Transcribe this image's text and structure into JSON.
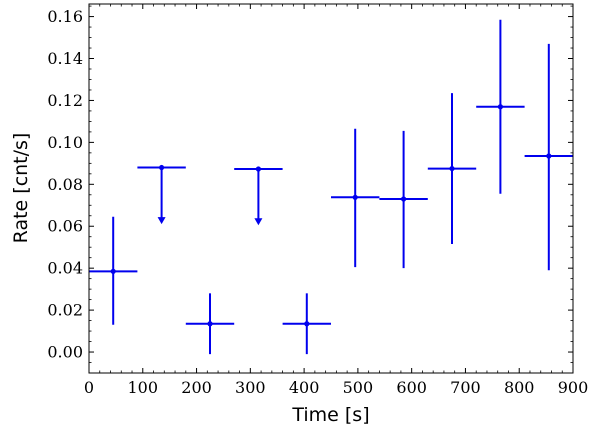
{
  "chart_data": {
    "type": "scatter",
    "title": "",
    "xlabel": "Time [s]",
    "ylabel": "Rate [cnt/s]",
    "xlim": [
      0,
      900
    ],
    "ylim": [
      -0.01,
      0.166
    ],
    "xticks": [
      0,
      100,
      200,
      300,
      400,
      500,
      600,
      700,
      800,
      900
    ],
    "xtick_labels": [
      "0",
      "100",
      "200",
      "300",
      "400",
      "500",
      "600",
      "700",
      "800",
      "900"
    ],
    "yticks": [
      0.0,
      0.02,
      0.04,
      0.06,
      0.08,
      0.1,
      0.12,
      0.14,
      0.16
    ],
    "ytick_labels": [
      "0.00",
      "0.02",
      "0.04",
      "0.06",
      "0.08",
      "0.10",
      "0.12",
      "0.14",
      "0.16"
    ],
    "grid": false,
    "color": "#0000ee",
    "points": [
      {
        "x": 45,
        "x_lo": 0,
        "x_hi": 90,
        "y": 0.0385,
        "y_lo": 0.013,
        "y_hi": 0.0645,
        "upper_limit": false
      },
      {
        "x": 135,
        "x_lo": 90,
        "x_hi": 180,
        "y": 0.088,
        "upper_limit": true,
        "arrow_to": 0.061
      },
      {
        "x": 225,
        "x_lo": 180,
        "x_hi": 270,
        "y": 0.0135,
        "y_lo": -0.001,
        "y_hi": 0.028,
        "upper_limit": false
      },
      {
        "x": 315,
        "x_lo": 270,
        "x_hi": 360,
        "y": 0.0873,
        "upper_limit": true,
        "arrow_to": 0.0605
      },
      {
        "x": 405,
        "x_lo": 360,
        "x_hi": 450,
        "y": 0.0135,
        "y_lo": -0.001,
        "y_hi": 0.028,
        "upper_limit": false
      },
      {
        "x": 495,
        "x_lo": 450,
        "x_hi": 540,
        "y": 0.0738,
        "y_lo": 0.0405,
        "y_hi": 0.1065,
        "upper_limit": false
      },
      {
        "x": 585,
        "x_lo": 540,
        "x_hi": 630,
        "y": 0.073,
        "y_lo": 0.04,
        "y_hi": 0.1055,
        "upper_limit": false
      },
      {
        "x": 675,
        "x_lo": 630,
        "x_hi": 720,
        "y": 0.0875,
        "y_lo": 0.0515,
        "y_hi": 0.1235,
        "upper_limit": false
      },
      {
        "x": 765,
        "x_lo": 720,
        "x_hi": 810,
        "y": 0.117,
        "y_lo": 0.0755,
        "y_hi": 0.1585,
        "upper_limit": false
      },
      {
        "x": 855,
        "x_lo": 810,
        "x_hi": 900,
        "y": 0.0935,
        "y_lo": 0.039,
        "y_hi": 0.147,
        "upper_limit": false
      }
    ]
  }
}
